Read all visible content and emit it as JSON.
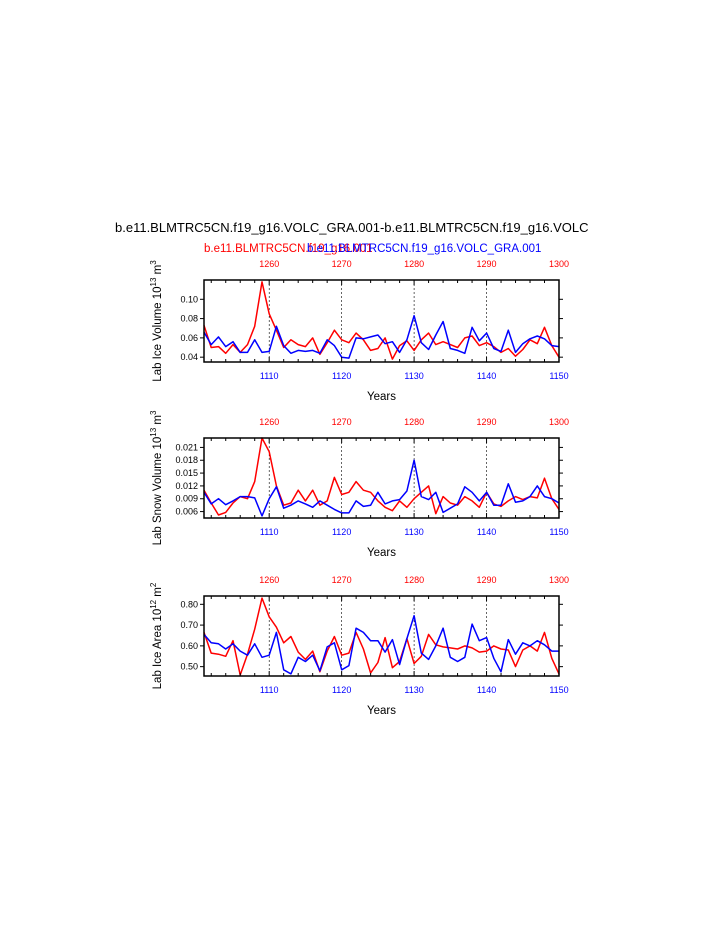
{
  "title": "b.e11.BLMTRC5CN.f19_g16.VOLC_GRA.001-b.e11.BLMTRC5CN.f19_g16.VOLC",
  "legend": {
    "red_case": "b.e11.BLMTRC5CN.f19_g16.001",
    "blue_case": "b.e11.BLMTRC5CN.f19_g16.VOLC_GRA.001"
  },
  "colors": {
    "red": "#ff0000",
    "blue": "#0000ff",
    "axis": "#000000"
  },
  "chart_data": [
    {
      "type": "line",
      "ylabel": "Lab Ice Volume 10",
      "ylabel_exp": "13",
      "ylabel_unit": " m",
      "ylabel_unit_exp": "3",
      "xlabel": "Years",
      "bottom_axis": {
        "range": [
          1101,
          1150
        ],
        "ticks": [
          1110,
          1120,
          1130,
          1140,
          1150
        ]
      },
      "top_axis": {
        "range": [
          1251,
          1300
        ],
        "ticks": [
          1260,
          1270,
          1280,
          1290,
          1300
        ]
      },
      "ylim": [
        0.035,
        0.12
      ],
      "yticks": [
        "0.04",
        "0.06",
        "0.08",
        "0.10"
      ],
      "ytick_values": [
        0.04,
        0.06,
        0.08,
        0.1
      ],
      "grid_x": [
        1110,
        1120,
        1130,
        1140
      ],
      "series": [
        {
          "color": "red",
          "x": [
            1251,
            1252,
            1253,
            1254,
            1255,
            1256,
            1257,
            1258,
            1259,
            1260,
            1261,
            1262,
            1263,
            1264,
            1265,
            1266,
            1267,
            1268,
            1269,
            1270,
            1271,
            1272,
            1273,
            1274,
            1275,
            1276,
            1277,
            1278,
            1279,
            1280,
            1281,
            1282,
            1283,
            1284,
            1285,
            1286,
            1287,
            1288,
            1289,
            1290,
            1291,
            1292,
            1293,
            1294,
            1295,
            1296,
            1297,
            1298,
            1299,
            1300
          ],
          "values": [
            0.073,
            0.05,
            0.051,
            0.044,
            0.053,
            0.045,
            0.053,
            0.072,
            0.118,
            0.085,
            0.068,
            0.05,
            0.058,
            0.053,
            0.051,
            0.06,
            0.043,
            0.055,
            0.068,
            0.058,
            0.055,
            0.065,
            0.058,
            0.047,
            0.049,
            0.06,
            0.038,
            0.052,
            0.057,
            0.047,
            0.058,
            0.065,
            0.053,
            0.056,
            0.053,
            0.05,
            0.06,
            0.062,
            0.052,
            0.055,
            0.051,
            0.045,
            0.049,
            0.041,
            0.048,
            0.058,
            0.054,
            0.071,
            0.052,
            0.04
          ]
        },
        {
          "color": "blue",
          "x": [
            1101,
            1102,
            1103,
            1104,
            1105,
            1106,
            1107,
            1108,
            1109,
            1110,
            1111,
            1112,
            1113,
            1114,
            1115,
            1116,
            1117,
            1118,
            1119,
            1120,
            1121,
            1122,
            1123,
            1124,
            1125,
            1126,
            1127,
            1128,
            1129,
            1130,
            1131,
            1132,
            1133,
            1134,
            1135,
            1136,
            1137,
            1138,
            1139,
            1140,
            1141,
            1142,
            1143,
            1144,
            1145,
            1146,
            1147,
            1148,
            1149,
            1150
          ],
          "values": [
            0.066,
            0.053,
            0.061,
            0.051,
            0.056,
            0.045,
            0.045,
            0.058,
            0.045,
            0.046,
            0.072,
            0.052,
            0.044,
            0.047,
            0.046,
            0.047,
            0.044,
            0.058,
            0.052,
            0.04,
            0.039,
            0.06,
            0.059,
            0.061,
            0.063,
            0.054,
            0.056,
            0.045,
            0.058,
            0.083,
            0.055,
            0.048,
            0.063,
            0.077,
            0.049,
            0.047,
            0.044,
            0.071,
            0.057,
            0.065,
            0.049,
            0.046,
            0.068,
            0.045,
            0.054,
            0.059,
            0.062,
            0.059,
            0.052,
            0.051
          ]
        }
      ]
    },
    {
      "type": "line",
      "ylabel": "Lab Snow Volume 10",
      "ylabel_exp": "13",
      "ylabel_unit": " m",
      "ylabel_unit_exp": "3",
      "xlabel": "Years",
      "bottom_axis": {
        "range": [
          1101,
          1150
        ],
        "ticks": [
          1110,
          1120,
          1130,
          1140,
          1150
        ]
      },
      "top_axis": {
        "range": [
          1251,
          1300
        ],
        "ticks": [
          1260,
          1270,
          1280,
          1290,
          1300
        ]
      },
      "ylim": [
        0.0045,
        0.0232
      ],
      "yticks": [
        "0.006",
        "0.009",
        "0.012",
        "0.015",
        "0.018",
        "0.021"
      ],
      "ytick_values": [
        0.006,
        0.009,
        0.012,
        0.015,
        0.018,
        0.021
      ],
      "grid_x": [
        1110,
        1120,
        1130,
        1140
      ],
      "series": [
        {
          "color": "red",
          "x": [
            1251,
            1252,
            1253,
            1254,
            1255,
            1256,
            1257,
            1258,
            1259,
            1260,
            1261,
            1262,
            1263,
            1264,
            1265,
            1266,
            1267,
            1268,
            1269,
            1270,
            1271,
            1272,
            1273,
            1274,
            1275,
            1276,
            1277,
            1278,
            1279,
            1280,
            1281,
            1282,
            1283,
            1284,
            1285,
            1286,
            1287,
            1288,
            1289,
            1290,
            1291,
            1292,
            1293,
            1294,
            1295,
            1296,
            1297,
            1298,
            1299,
            1300
          ],
          "values": [
            0.011,
            0.008,
            0.0052,
            0.0058,
            0.008,
            0.0095,
            0.009,
            0.013,
            0.0232,
            0.02,
            0.012,
            0.0075,
            0.008,
            0.011,
            0.0085,
            0.011,
            0.0075,
            0.0085,
            0.014,
            0.01,
            0.0105,
            0.013,
            0.011,
            0.0105,
            0.0085,
            0.007,
            0.0062,
            0.0085,
            0.007,
            0.009,
            0.0105,
            0.012,
            0.0055,
            0.0095,
            0.008,
            0.0075,
            0.0095,
            0.0085,
            0.007,
            0.0105,
            0.0078,
            0.0072,
            0.0085,
            0.0095,
            0.0088,
            0.0095,
            0.0092,
            0.0138,
            0.009,
            0.0065
          ]
        },
        {
          "color": "blue",
          "x": [
            1101,
            1102,
            1103,
            1104,
            1105,
            1106,
            1107,
            1108,
            1109,
            1110,
            1111,
            1112,
            1113,
            1114,
            1115,
            1116,
            1117,
            1118,
            1119,
            1120,
            1121,
            1122,
            1123,
            1124,
            1125,
            1126,
            1127,
            1128,
            1129,
            1130,
            1131,
            1132,
            1133,
            1134,
            1135,
            1136,
            1137,
            1138,
            1139,
            1140,
            1141,
            1142,
            1143,
            1144,
            1145,
            1146,
            1147,
            1148,
            1149,
            1150
          ],
          "values": [
            0.0105,
            0.0078,
            0.009,
            0.0076,
            0.0085,
            0.0095,
            0.0095,
            0.0092,
            0.005,
            0.009,
            0.0118,
            0.0068,
            0.0075,
            0.0085,
            0.0078,
            0.007,
            0.0085,
            0.0075,
            0.0065,
            0.0057,
            0.0057,
            0.0085,
            0.0072,
            0.0075,
            0.0105,
            0.0078,
            0.0085,
            0.0088,
            0.0108,
            0.018,
            0.0095,
            0.0088,
            0.0105,
            0.0058,
            0.0068,
            0.0078,
            0.0118,
            0.0105,
            0.0085,
            0.0105,
            0.0075,
            0.0075,
            0.0125,
            0.0082,
            0.0085,
            0.0095,
            0.012,
            0.0095,
            0.009,
            0.008
          ]
        }
      ]
    },
    {
      "type": "line",
      "ylabel": "Lab Ice Area 10",
      "ylabel_exp": "12",
      "ylabel_unit": " m",
      "ylabel_unit_exp": "2",
      "xlabel": "Years",
      "bottom_axis": {
        "range": [
          1101,
          1150
        ],
        "ticks": [
          1110,
          1120,
          1130,
          1140,
          1150
        ]
      },
      "top_axis": {
        "range": [
          1251,
          1300
        ],
        "ticks": [
          1260,
          1270,
          1280,
          1290,
          1300
        ]
      },
      "ylim": [
        0.455,
        0.84
      ],
      "yticks": [
        "0.50",
        "0.60",
        "0.70",
        "0.80"
      ],
      "ytick_values": [
        0.5,
        0.6,
        0.7,
        0.8
      ],
      "grid_x": [
        1110,
        1120,
        1130,
        1140
      ],
      "series": [
        {
          "color": "red",
          "x": [
            1251,
            1252,
            1253,
            1254,
            1255,
            1256,
            1257,
            1258,
            1259,
            1260,
            1261,
            1262,
            1263,
            1264,
            1265,
            1266,
            1267,
            1268,
            1269,
            1270,
            1271,
            1272,
            1273,
            1274,
            1275,
            1276,
            1277,
            1278,
            1279,
            1280,
            1281,
            1282,
            1283,
            1284,
            1285,
            1286,
            1287,
            1288,
            1289,
            1290,
            1291,
            1292,
            1293,
            1294,
            1295,
            1296,
            1297,
            1298,
            1299,
            1300
          ],
          "values": [
            0.665,
            0.565,
            0.56,
            0.55,
            0.625,
            0.46,
            0.56,
            0.68,
            0.83,
            0.74,
            0.69,
            0.615,
            0.645,
            0.57,
            0.535,
            0.575,
            0.475,
            0.575,
            0.645,
            0.555,
            0.565,
            0.665,
            0.585,
            0.47,
            0.52,
            0.64,
            0.495,
            0.525,
            0.635,
            0.515,
            0.55,
            0.655,
            0.605,
            0.595,
            0.59,
            0.585,
            0.6,
            0.59,
            0.57,
            0.575,
            0.6,
            0.585,
            0.58,
            0.5,
            0.58,
            0.6,
            0.575,
            0.665,
            0.54,
            0.465
          ]
        },
        {
          "color": "blue",
          "x": [
            1101,
            1102,
            1103,
            1104,
            1105,
            1106,
            1107,
            1108,
            1109,
            1110,
            1111,
            1112,
            1113,
            1114,
            1115,
            1116,
            1117,
            1118,
            1119,
            1120,
            1121,
            1122,
            1123,
            1124,
            1125,
            1126,
            1127,
            1128,
            1129,
            1130,
            1131,
            1132,
            1133,
            1134,
            1135,
            1136,
            1137,
            1138,
            1139,
            1140,
            1141,
            1142,
            1143,
            1144,
            1145,
            1146,
            1147,
            1148,
            1149,
            1150
          ],
          "values": [
            0.655,
            0.615,
            0.61,
            0.585,
            0.61,
            0.575,
            0.555,
            0.61,
            0.545,
            0.555,
            0.665,
            0.485,
            0.465,
            0.545,
            0.525,
            0.555,
            0.48,
            0.595,
            0.615,
            0.485,
            0.505,
            0.685,
            0.665,
            0.625,
            0.625,
            0.57,
            0.63,
            0.51,
            0.635,
            0.745,
            0.565,
            0.535,
            0.6,
            0.685,
            0.545,
            0.525,
            0.545,
            0.705,
            0.625,
            0.64,
            0.54,
            0.475,
            0.63,
            0.56,
            0.615,
            0.6,
            0.625,
            0.605,
            0.575,
            0.575
          ]
        }
      ]
    }
  ]
}
